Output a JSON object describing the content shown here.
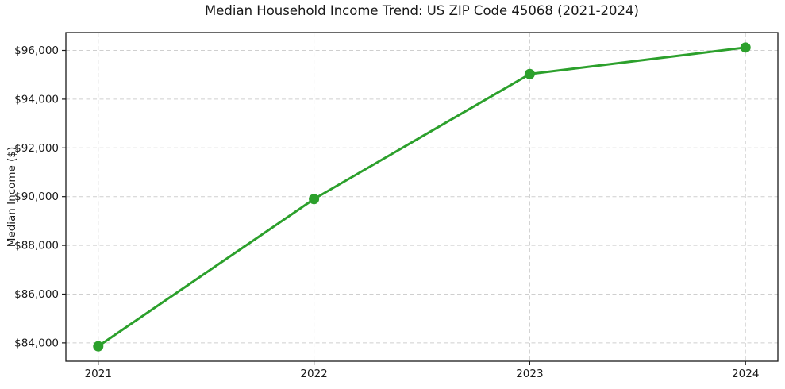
{
  "chart_data": {
    "type": "line",
    "title": "Median Household Income Trend: US ZIP Code 45068 (2021-2024)",
    "xlabel": "",
    "ylabel": "Median Income ($)",
    "x": [
      2021,
      2022,
      2023,
      2024
    ],
    "x_tick_labels": [
      "2021",
      "2022",
      "2023",
      "2024"
    ],
    "series": [
      {
        "name": "Median Household Income",
        "values": [
          83860,
          89900,
          95030,
          96120
        ]
      }
    ],
    "y_ticks": [
      84000,
      86000,
      88000,
      90000,
      92000,
      94000,
      96000
    ],
    "y_tick_labels": [
      "$84,000",
      "$86,000",
      "$88,000",
      "$90,000",
      "$92,000",
      "$94,000",
      "$96,000"
    ],
    "xlim": [
      2020.85,
      2024.15
    ],
    "ylim": [
      83247,
      96733
    ],
    "grid": true,
    "legend": "none",
    "line_color": "#2ca02c",
    "grid_color": "#cfcfcf",
    "axis_color": "#1a1a1a",
    "text_color": "#1a1a1a",
    "background_color": "#ffffff"
  }
}
